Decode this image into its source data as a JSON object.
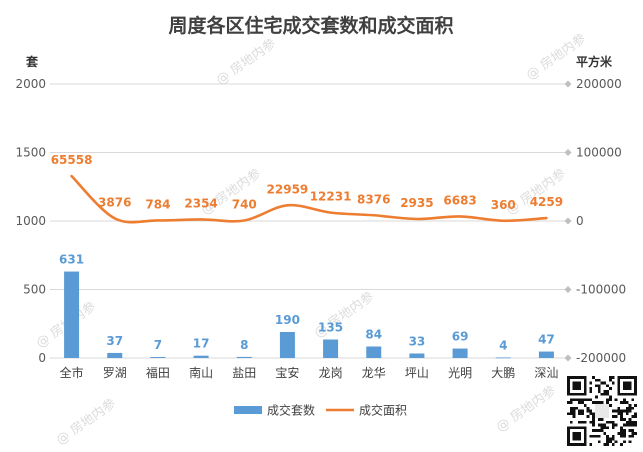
{
  "chart_data": {
    "type": "bar+line",
    "title": "周度各区住宅成交套数和成交面积",
    "categories": [
      "全市",
      "罗湖",
      "福田",
      "南山",
      "盐田",
      "宝安",
      "龙岗",
      "龙华",
      "坪山",
      "光明",
      "大鹏",
      "深汕"
    ],
    "series": [
      {
        "name": "成交套数",
        "type": "bar",
        "axis": "left",
        "color": "#5b9bd5",
        "values": [
          631,
          37,
          7,
          17,
          8,
          190,
          135,
          84,
          33,
          69,
          4,
          47
        ]
      },
      {
        "name": "成交面积",
        "type": "line",
        "axis": "right",
        "color": "#ed7d31",
        "values": [
          65558,
          3876,
          784,
          2354,
          740,
          22959,
          12231,
          8376,
          2935,
          6683,
          360,
          4259
        ]
      }
    ],
    "y_left": {
      "label": "套",
      "ylim": [
        0,
        2000
      ],
      "ticks": [
        "0",
        "500",
        "1000",
        "1500",
        "2000"
      ]
    },
    "y_right": {
      "label": "平方米",
      "ylim": [
        -200000,
        200000
      ],
      "ticks": [
        "-200000",
        "-100000",
        "0",
        "100000",
        "200000"
      ]
    },
    "grid": true,
    "legend_position": "bottom"
  },
  "watermark": "@ 房地内参"
}
